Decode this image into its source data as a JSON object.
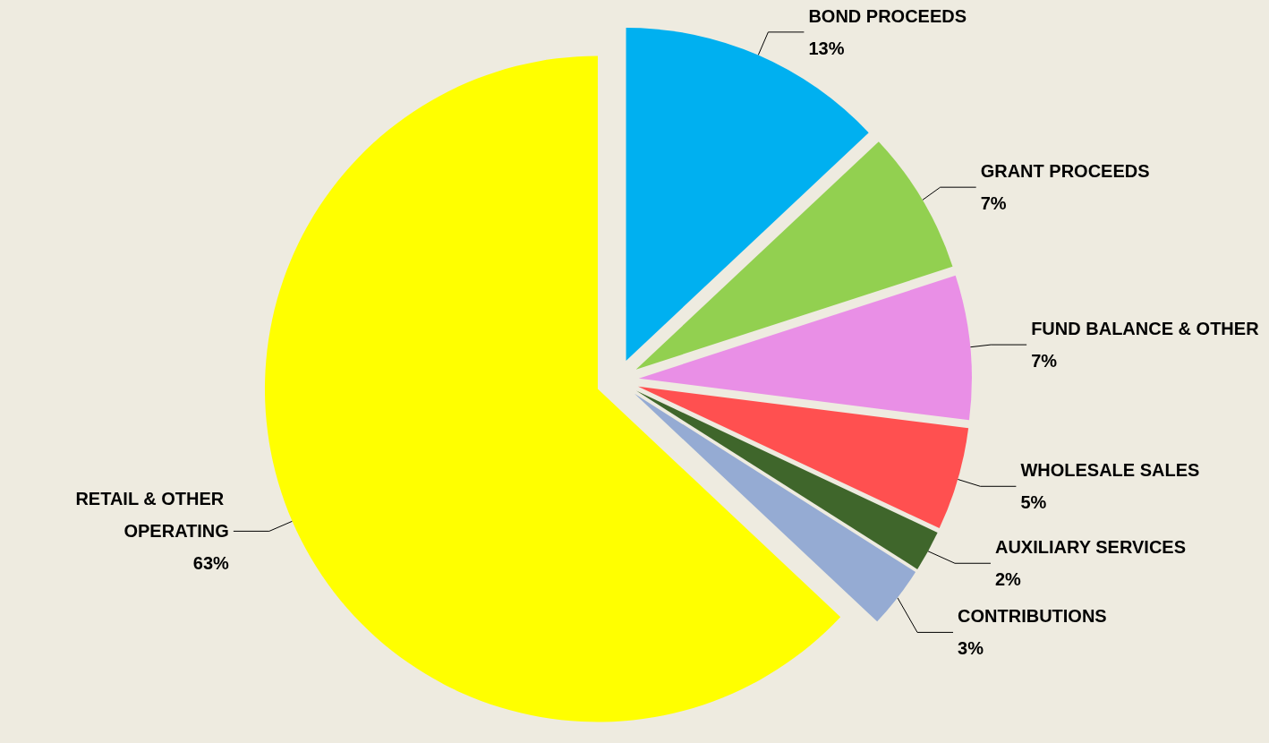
{
  "chart_data": {
    "type": "pie",
    "categories": [
      "BOND PROCEEDS",
      "GRANT PROCEEDS",
      "FUND BALANCE & OTHER",
      "WHOLESALE SALES",
      "AUXILIARY SERVICES",
      "CONTRIBUTIONS",
      "RETAIL & OTHER OPERATING"
    ],
    "values": [
      13,
      7,
      7,
      5,
      2,
      3,
      63
    ],
    "value_labels": [
      "13%",
      "7%",
      "7%",
      "5%",
      "2%",
      "3%",
      "63%"
    ],
    "colors": [
      "#00b0f0",
      "#92d050",
      "#e98fe6",
      "#ff5050",
      "#3f662b",
      "#95abd3",
      "#ffff00"
    ],
    "legend": false
  }
}
